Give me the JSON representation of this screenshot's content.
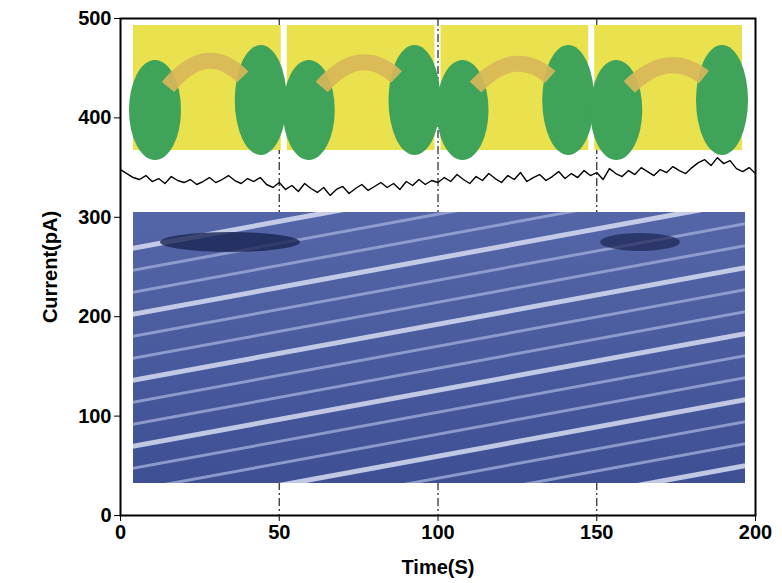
{
  "chart_data": {
    "type": "line",
    "x_label": "Time(S)",
    "y_label": "Current(pA)",
    "x": [
      0,
      2,
      4,
      6,
      8,
      10,
      12,
      14,
      16,
      18,
      20,
      22,
      24,
      26,
      28,
      30,
      32,
      34,
      36,
      38,
      40,
      42,
      44,
      46,
      48,
      50,
      52,
      54,
      56,
      58,
      60,
      62,
      64,
      66,
      68,
      70,
      72,
      74,
      76,
      78,
      80,
      82,
      84,
      86,
      88,
      90,
      92,
      94,
      96,
      98,
      100,
      102,
      104,
      106,
      108,
      110,
      112,
      114,
      116,
      118,
      120,
      122,
      124,
      126,
      128,
      130,
      132,
      134,
      136,
      138,
      140,
      142,
      144,
      146,
      148,
      150,
      152,
      154,
      156,
      158,
      160,
      162,
      164,
      166,
      168,
      170,
      172,
      174,
      176,
      178,
      180,
      182,
      184,
      186,
      188,
      190,
      192,
      194,
      196,
      198,
      200
    ],
    "values": [
      348,
      344,
      340,
      338,
      342,
      336,
      339,
      334,
      341,
      337,
      335,
      338,
      333,
      336,
      340,
      335,
      338,
      342,
      337,
      334,
      339,
      336,
      340,
      333,
      330,
      335,
      328,
      332,
      326,
      334,
      329,
      325,
      330,
      322,
      328,
      331,
      324,
      329,
      333,
      327,
      331,
      335,
      330,
      334,
      328,
      336,
      332,
      338,
      333,
      337,
      335,
      340,
      336,
      343,
      338,
      334,
      341,
      337,
      344,
      339,
      335,
      342,
      338,
      345,
      336,
      340,
      343,
      337,
      341,
      346,
      339,
      344,
      340,
      347,
      342,
      345,
      338,
      349,
      344,
      341,
      347,
      343,
      350,
      346,
      342,
      348,
      345,
      351,
      347,
      344,
      350,
      355,
      358,
      352,
      360,
      354,
      357,
      349,
      346,
      350,
      344
    ],
    "color": "#000000",
    "event_times": [
      50,
      100,
      150
    ],
    "xlim": [
      0,
      200
    ],
    "xticks": [
      0,
      50,
      100,
      150,
      200
    ],
    "ylim": [
      0,
      500
    ],
    "yticks": [
      0,
      100,
      200,
      300,
      400,
      500
    ],
    "grid": false
  }
}
